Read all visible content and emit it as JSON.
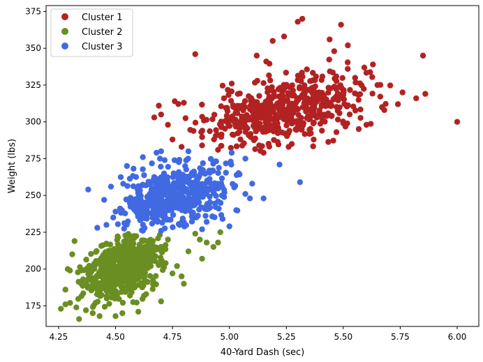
{
  "chart_data": {
    "type": "scatter",
    "title": "",
    "xlabel": "40-Yard Dash (sec)",
    "ylabel": "Weight (lbs)",
    "xlim": [
      4.195,
      6.095
    ],
    "ylim": [
      161,
      379
    ],
    "xticks": [
      4.25,
      4.5,
      4.75,
      5.0,
      5.25,
      5.5,
      5.75,
      6.0
    ],
    "xtick_labels": [
      "4.25",
      "4.50",
      "4.75",
      "5.00",
      "5.25",
      "5.50",
      "5.75",
      "6.00"
    ],
    "yticks": [
      175,
      200,
      225,
      250,
      275,
      300,
      325,
      350,
      375
    ],
    "ytick_labels": [
      "175",
      "200",
      "225",
      "250",
      "275",
      "300",
      "325",
      "350",
      "375"
    ],
    "grid": false,
    "legend_position": "top-left",
    "series": [
      {
        "name": "Cluster 1",
        "color": "#b22222",
        "generated": {
          "count": 520,
          "seed": 11,
          "x_mean": 5.23,
          "x_sd": 0.17,
          "y_mean": 308,
          "y_sd": 12.5,
          "correlation": 0.45,
          "clip": {
            "xmin": 4.68,
            "xmax": 5.72,
            "ymin": 280,
            "ymax": 345
          }
        },
        "points": [
          [
            4.85,
            346
          ],
          [
            5.32,
            370
          ],
          [
            5.3,
            368
          ],
          [
            5.49,
            366
          ],
          [
            5.24,
            358
          ],
          [
            5.19,
            355
          ],
          [
            5.12,
            345
          ],
          [
            5.44,
            356
          ],
          [
            5.46,
            348
          ],
          [
            5.52,
            352
          ],
          [
            5.63,
            339
          ],
          [
            5.65,
            325
          ],
          [
            5.67,
            310
          ],
          [
            5.68,
            308
          ],
          [
            5.74,
            312
          ],
          [
            5.76,
            320
          ],
          [
            5.82,
            316
          ],
          [
            5.85,
            345
          ],
          [
            5.86,
            319
          ],
          [
            6.0,
            300
          ],
          [
            4.7,
            305
          ],
          [
            4.69,
            311
          ],
          [
            4.73,
            298
          ],
          [
            4.67,
            303
          ],
          [
            4.75,
            288
          ],
          [
            4.79,
            283
          ],
          [
            4.8,
            313
          ],
          [
            4.76,
            314
          ],
          [
            5.15,
            279
          ],
          [
            5.26,
            283
          ],
          [
            5.37,
            288
          ],
          [
            5.5,
            299
          ],
          [
            5.47,
            293
          ],
          [
            4.88,
            284
          ],
          [
            4.95,
            281
          ]
        ]
      },
      {
        "name": "Cluster 2",
        "color": "#6b8e23",
        "generated": {
          "count": 560,
          "seed": 23,
          "x_mean": 4.53,
          "x_sd": 0.085,
          "y_mean": 200,
          "y_sd": 11,
          "correlation": 0.4,
          "clip": {
            "xmin": 4.3,
            "xmax": 4.72,
            "ymin": 172,
            "ymax": 224
          }
        },
        "points": [
          [
            4.26,
            173
          ],
          [
            4.28,
            176
          ],
          [
            4.28,
            186
          ],
          [
            4.29,
            200
          ],
          [
            4.3,
            199
          ],
          [
            4.31,
            210
          ],
          [
            4.32,
            219
          ],
          [
            4.34,
            166
          ],
          [
            4.35,
            190
          ],
          [
            4.37,
            172
          ],
          [
            4.4,
            170
          ],
          [
            4.43,
            168
          ],
          [
            4.5,
            168
          ],
          [
            4.53,
            170
          ],
          [
            4.6,
            171
          ],
          [
            4.72,
            204
          ],
          [
            4.75,
            197
          ],
          [
            4.77,
            202
          ],
          [
            4.79,
            195
          ],
          [
            4.8,
            190
          ],
          [
            4.82,
            212
          ],
          [
            4.87,
            220
          ],
          [
            4.88,
            207
          ],
          [
            4.9,
            218
          ],
          [
            4.93,
            215
          ],
          [
            4.95,
            218
          ],
          [
            4.96,
            225
          ],
          [
            4.73,
            220
          ],
          [
            4.85,
            224
          ],
          [
            4.7,
            178
          ]
        ]
      },
      {
        "name": "Cluster 3",
        "color": "#4169e1",
        "generated": {
          "count": 470,
          "seed": 37,
          "x_mean": 4.76,
          "x_sd": 0.12,
          "y_mean": 250,
          "y_sd": 11.5,
          "correlation": 0.35,
          "clip": {
            "xmin": 4.5,
            "xmax": 5.05,
            "ymin": 226,
            "ymax": 276
          }
        },
        "points": [
          [
            4.38,
            254
          ],
          [
            4.42,
            228
          ],
          [
            4.46,
            230
          ],
          [
            4.49,
            235
          ],
          [
            4.45,
            247
          ],
          [
            4.48,
            256
          ],
          [
            4.5,
            239
          ],
          [
            4.55,
            270
          ],
          [
            4.62,
            276
          ],
          [
            4.68,
            279
          ],
          [
            4.7,
            280
          ],
          [
            4.82,
            280
          ],
          [
            5.07,
            251
          ],
          [
            5.09,
            248
          ],
          [
            5.1,
            258
          ],
          [
            5.15,
            248
          ],
          [
            5.22,
            271
          ],
          [
            5.31,
            259
          ],
          [
            5.07,
            275
          ],
          [
            5.01,
            279
          ],
          [
            5.0,
            229
          ],
          [
            4.97,
            234
          ],
          [
            4.94,
            242
          ],
          [
            4.9,
            232
          ],
          [
            5.03,
            240
          ],
          [
            4.62,
            226
          ],
          [
            4.7,
            226
          ],
          [
            4.8,
            232
          ],
          [
            4.88,
            227
          ],
          [
            4.95,
            246
          ]
        ]
      }
    ]
  }
}
